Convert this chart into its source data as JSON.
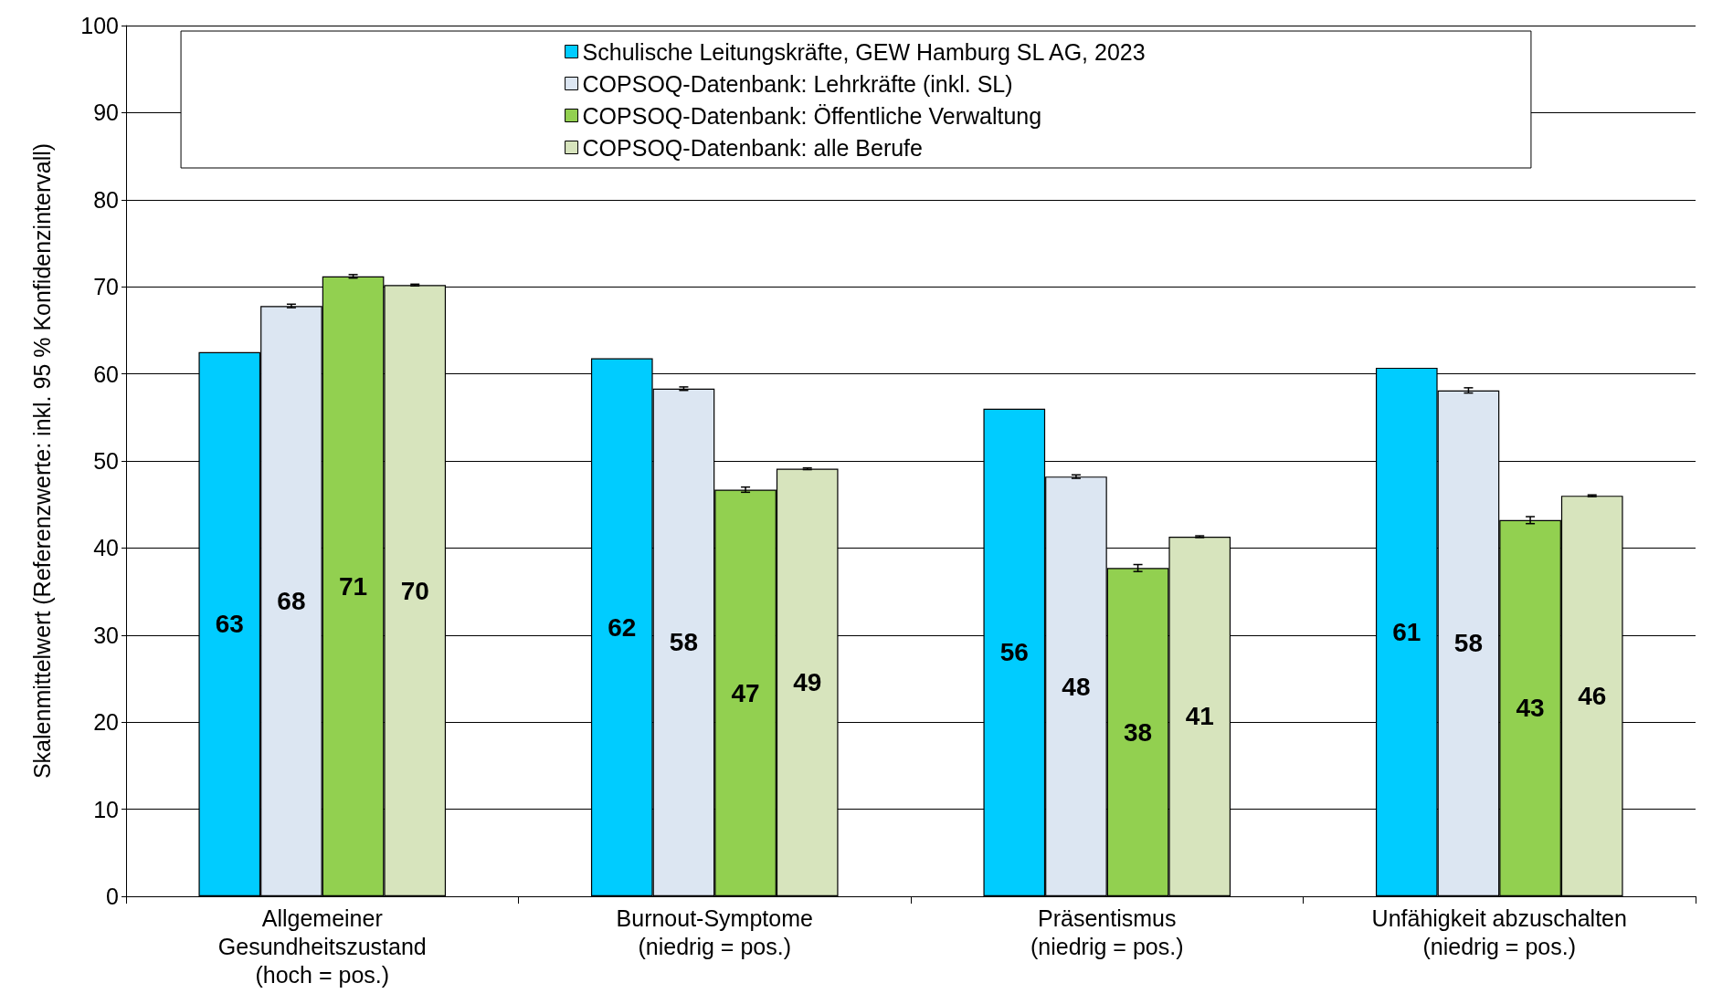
{
  "chart_data": {
    "type": "bar",
    "ylabel": "Skalenmittelwert (Referenzwerte: inkl. 95 % Konfidenzintervall)",
    "categories": [
      "Allgemeiner\nGesundheitszustand\n(hoch = pos.)",
      "Burnout-Symptome\n(niedrig = pos.)",
      "Präsentismus\n(niedrig = pos.)",
      "Unfähigkeit abzuschalten\n(niedrig = pos.)"
    ],
    "series": [
      {
        "name": "Schulische Leitungskräfte, GEW Hamburg SL AG, 2023",
        "color": "#00ccff",
        "values": [
          62.5,
          61.8,
          56.0,
          60.7
        ],
        "value_labels": [
          "63",
          "62",
          "56",
          "61"
        ]
      },
      {
        "name": "COPSOQ-Datenbank: Lehrkräfte (inkl. SL)",
        "color": "#dce6f2",
        "values": [
          67.8,
          58.3,
          48.2,
          58.1
        ],
        "value_labels": [
          "68",
          "58",
          "48",
          "58"
        ],
        "errors": [
          0.2,
          0.2,
          0.2,
          0.3
        ]
      },
      {
        "name": "COPSOQ-Datenbank: Öffentliche Verwaltung",
        "color": "#92d050",
        "values": [
          71.2,
          46.7,
          37.7,
          43.2
        ],
        "value_labels": [
          "71",
          "47",
          "38",
          "43"
        ],
        "errors": [
          0.2,
          0.3,
          0.4,
          0.4
        ]
      },
      {
        "name": "COPSOQ-Datenbank: alle Berufe",
        "color": "#d7e4bd",
        "values": [
          70.2,
          49.1,
          41.3,
          46.0
        ],
        "value_labels": [
          "70",
          "49",
          "41",
          "46"
        ],
        "errors": [
          0.1,
          0.1,
          0.1,
          0.1
        ]
      }
    ],
    "ylim": [
      0,
      100
    ],
    "yticks": [
      0,
      10,
      20,
      30,
      40,
      50,
      60,
      70,
      80,
      90,
      100
    ],
    "grid": "y",
    "legend": "top"
  }
}
